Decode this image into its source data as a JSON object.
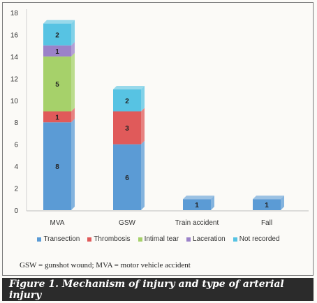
{
  "figure": {
    "caption": "Figure 1. Mechanism of injury and type of arterial injury",
    "footnote": "GSW = gunshot wound; MVA = motor vehicle accident"
  },
  "chart_data": {
    "type": "bar",
    "stacked": true,
    "categories": [
      "MVA",
      "GSW",
      "Train accident",
      "Fall"
    ],
    "ylim": [
      0,
      18
    ],
    "yticks": [
      0,
      2,
      4,
      6,
      8,
      10,
      12,
      14,
      16,
      18
    ],
    "grid": false,
    "legend_position": "bottom",
    "series": [
      {
        "name": "Transection",
        "color": "#5b9bd5",
        "values": [
          8,
          6,
          1,
          1
        ]
      },
      {
        "name": "Thrombosis",
        "color": "#e05a5a",
        "values": [
          1,
          3,
          0,
          0
        ]
      },
      {
        "name": "Intimal tear",
        "color": "#a6d16a",
        "values": [
          5,
          0,
          0,
          0
        ]
      },
      {
        "name": "Laceration",
        "color": "#9b82c9",
        "values": [
          1,
          0,
          0,
          0
        ]
      },
      {
        "name": "Not recorded",
        "color": "#57c3e3",
        "values": [
          2,
          2,
          0,
          0
        ]
      }
    ]
  }
}
